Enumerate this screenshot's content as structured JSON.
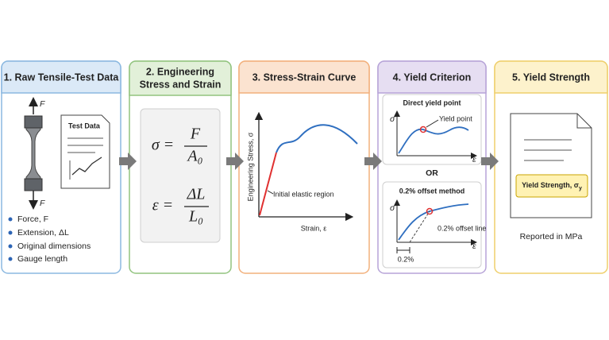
{
  "panels": [
    {
      "title": "1. Raw Tensile-Test Data",
      "force_top": "F",
      "force_bottom": "F",
      "document_title": "Test Data",
      "bullets": [
        "Force, F",
        "Extension, ΔL",
        "Original dimensions",
        "Gauge length"
      ]
    },
    {
      "title_lines": [
        "2. Engineering",
        "Stress and Strain"
      ],
      "formulas": [
        {
          "lhs": "σ =",
          "numerator": "F",
          "denominator": "A₀"
        },
        {
          "lhs": "ε =",
          "numerator": "ΔL",
          "denominator": "L₀"
        }
      ]
    },
    {
      "title": "3. Stress-Strain Curve",
      "y_label": "Engineering Stress, σ",
      "x_label": "Strain, ε",
      "annotation": "Initial elastic region"
    },
    {
      "title": "4. Yield Criterion",
      "separator": "OR",
      "methods": [
        {
          "title": "Direct yield point",
          "y_label": "σ",
          "x_label": "ε",
          "annotation": "Yield point"
        },
        {
          "title": "0.2% offset method",
          "y_label": "σ",
          "x_label": "ε",
          "annotation": "0.2% offset line",
          "offset_label": "0.2%"
        }
      ]
    },
    {
      "title": "5. Yield Strength",
      "result_label": "Yield Strength, σ",
      "result_subscript": "y",
      "note": "Reported in MPa"
    }
  ]
}
